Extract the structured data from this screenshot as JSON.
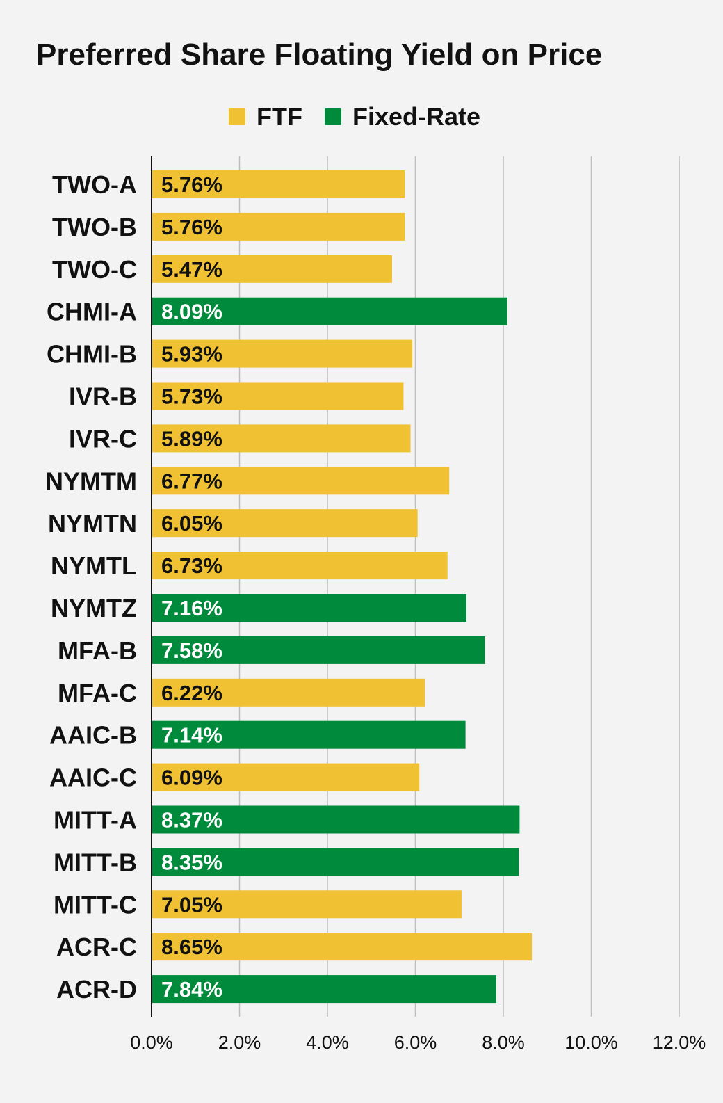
{
  "chart_data": {
    "type": "bar",
    "orientation": "horizontal",
    "title": "Preferred Share Floating Yield on Price",
    "legend": [
      {
        "name": "FTF",
        "color": "#f0c132"
      },
      {
        "name": "Fixed-Rate",
        "color": "#008a3c"
      }
    ],
    "legend_position": "top-center",
    "categories": [
      "TWO-A",
      "TWO-B",
      "TWO-C",
      "CHMI-A",
      "CHMI-B",
      "IVR-B",
      "IVR-C",
      "NYMTM",
      "NYMTN",
      "NYMTL",
      "NYMTZ",
      "MFA-B",
      "MFA-C",
      "AAIC-B",
      "AAIC-C",
      "MITT-A",
      "MITT-B",
      "MITT-C",
      "ACR-C",
      "ACR-D"
    ],
    "values": [
      5.76,
      5.76,
      5.47,
      8.09,
      5.93,
      5.73,
      5.89,
      6.77,
      6.05,
      6.73,
      7.16,
      7.58,
      6.22,
      7.14,
      6.09,
      8.37,
      8.35,
      7.05,
      8.65,
      7.84
    ],
    "value_labels": [
      "5.76%",
      "5.76%",
      "5.47%",
      "8.09%",
      "5.93%",
      "5.73%",
      "5.89%",
      "6.77%",
      "6.05%",
      "6.73%",
      "7.16%",
      "7.58%",
      "6.22%",
      "7.14%",
      "6.09%",
      "8.37%",
      "8.35%",
      "7.05%",
      "8.65%",
      "7.84%"
    ],
    "groups": [
      "FTF",
      "FTF",
      "FTF",
      "Fixed-Rate",
      "FTF",
      "FTF",
      "FTF",
      "FTF",
      "FTF",
      "FTF",
      "Fixed-Rate",
      "Fixed-Rate",
      "FTF",
      "Fixed-Rate",
      "FTF",
      "Fixed-Rate",
      "Fixed-Rate",
      "FTF",
      "FTF",
      "Fixed-Rate"
    ],
    "xlim": [
      0,
      12
    ],
    "x_ticks": [
      0,
      2,
      4,
      6,
      8,
      10,
      12
    ],
    "x_tick_labels": [
      "0.0%",
      "2.0%",
      "4.0%",
      "6.0%",
      "8.0%",
      "10.0%",
      "12.0%"
    ],
    "xlabel": "",
    "ylabel": "",
    "grid": true
  },
  "colors": {
    "ftf": "#f0c132",
    "fixed_rate": "#008a3c",
    "grid": "#bdbdbd",
    "axis": "#111111",
    "background": "#f3f3f3"
  }
}
